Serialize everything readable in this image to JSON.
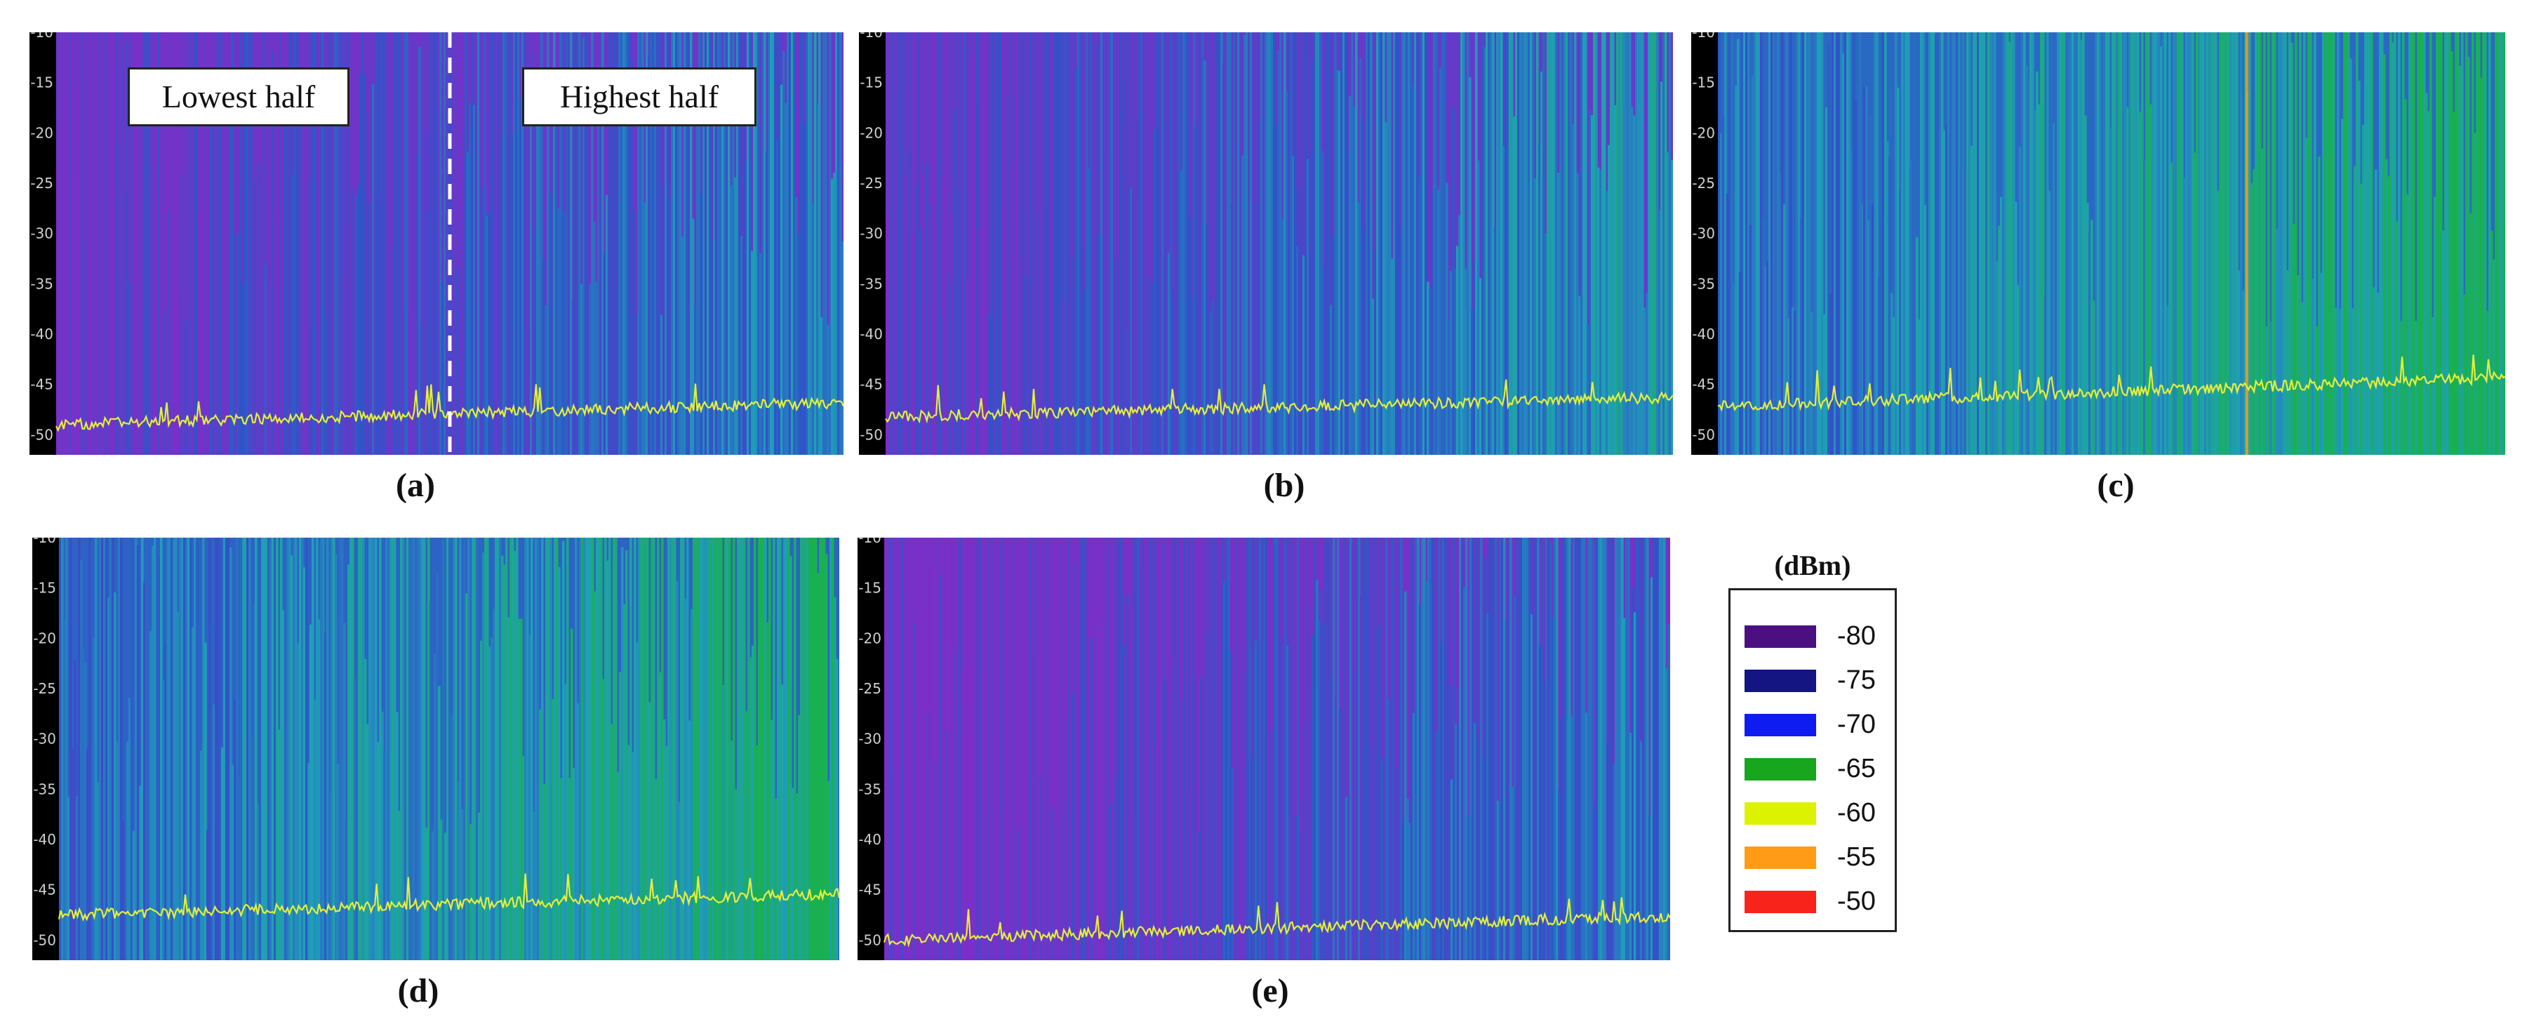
{
  "colors": {
    "background_purple": "#7b2fc9",
    "dark_blue": "#2f54c8",
    "teal": "#1f9fb8",
    "green": "#19b050",
    "trace_yellow": "#e6ef3a",
    "axis_black": "#000000",
    "tick_label": "#cfcfcf"
  },
  "region_labels": {
    "lowest": "Lowest half",
    "highest": "Highest half"
  },
  "legend": {
    "unit": "(dBm)",
    "items": [
      {
        "label": "-80",
        "color": "#4b0f82"
      },
      {
        "label": "-75",
        "color": "#141483"
      },
      {
        "label": "-70",
        "color": "#0f1cf0"
      },
      {
        "label": "-65",
        "color": "#18a61e"
      },
      {
        "label": "-60",
        "color": "#dcf201"
      },
      {
        "label": "-55",
        "color": "#ff9b16"
      },
      {
        "label": "-50",
        "color": "#f8241c"
      }
    ]
  },
  "chart_data": [
    {
      "id": "a",
      "caption": "(a)",
      "type": "heatmap",
      "ylim": [
        -10,
        -52
      ],
      "y_ticks": [
        "-10",
        "-15",
        "-20",
        "-25",
        "-30",
        "-35",
        "-40",
        "-45",
        "-50"
      ],
      "trace": {
        "start": -49.0,
        "end": -46.8
      },
      "intensity": {
        "start": 0.05,
        "end": 0.55
      },
      "split_line": 0.5
    },
    {
      "id": "b",
      "caption": "(b)",
      "type": "heatmap",
      "ylim": [
        -10,
        -52
      ],
      "y_ticks": [
        "-10",
        "-15",
        "-20",
        "-25",
        "-30",
        "-35",
        "-40",
        "-45",
        "-50"
      ],
      "trace": {
        "start": -48.2,
        "end": -46.3
      },
      "intensity": {
        "start": 0.1,
        "end": 0.7
      }
    },
    {
      "id": "c",
      "caption": "(c)",
      "type": "heatmap",
      "ylim": [
        -10,
        -52
      ],
      "y_ticks": [
        "-10",
        "-15",
        "-20",
        "-25",
        "-30",
        "-35",
        "-40",
        "-45",
        "-50"
      ],
      "trace": {
        "start": -47.2,
        "end": -44.3
      },
      "intensity": {
        "start": 0.45,
        "end": 0.95
      },
      "spike_marker": {
        "position": 0.67,
        "color": "#ff9b16"
      }
    },
    {
      "id": "d",
      "caption": "(d)",
      "type": "heatmap",
      "ylim": [
        -10,
        -52
      ],
      "y_ticks": [
        "-10",
        "-15",
        "-20",
        "-25",
        "-30",
        "-35",
        "-40",
        "-45",
        "-50"
      ],
      "trace": {
        "start": -47.5,
        "end": -45.4
      },
      "intensity": {
        "start": 0.42,
        "end": 0.92
      }
    },
    {
      "id": "e",
      "caption": "(e)",
      "type": "heatmap",
      "ylim": [
        -10,
        -52
      ],
      "y_ticks": [
        "-10",
        "-15",
        "-20",
        "-25",
        "-30",
        "-35",
        "-40",
        "-45",
        "-50"
      ],
      "trace": {
        "start": -50.0,
        "end": -47.6
      },
      "intensity": {
        "start": 0.02,
        "end": 0.5
      }
    }
  ]
}
